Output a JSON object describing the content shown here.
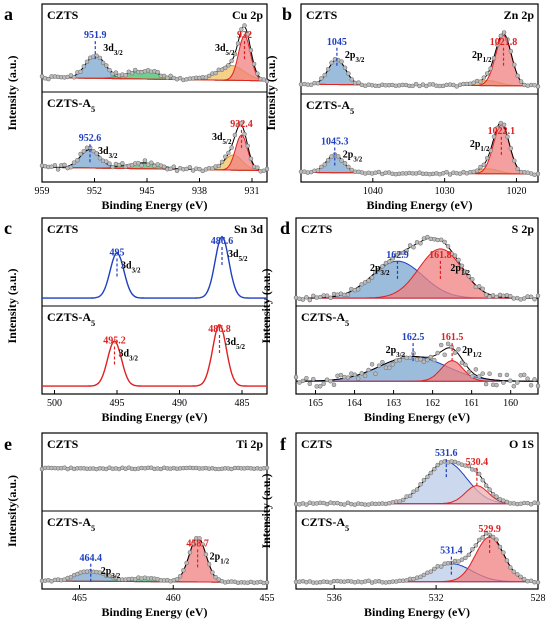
{
  "chart_data": [
    {
      "panel": "a",
      "type": "line",
      "element": "Cu 2p",
      "xlabel": "Binding Energy (eV)",
      "ylabel": "Intensity (a.u.)",
      "xlim": [
        959,
        929
      ],
      "xticks": [
        959,
        952,
        945,
        938,
        931
      ],
      "reversed_x": true,
      "subpanels": [
        {
          "sample": "CZTS",
          "peaks": [
            {
              "label": "951.9",
              "orbital": "3d",
              "sub": "3/2",
              "x": 951.9,
              "color": "#1f3fbf"
            },
            {
              "label": "932",
              "orbital": "3d",
              "sub": "5/2",
              "x": 932,
              "color": "#e02020"
            }
          ]
        },
        {
          "sample": "CZTS-A",
          "sample_sub": "5",
          "peaks": [
            {
              "label": "952.6",
              "orbital": "3d",
              "sub": "3/2",
              "x": 952.6,
              "color": "#1f3fbf"
            },
            {
              "label": "932.4",
              "orbital": "3d",
              "sub": "5/2",
              "x": 932.4,
              "color": "#e02020"
            }
          ]
        }
      ]
    },
    {
      "panel": "b",
      "type": "line",
      "element": "Zn 2p",
      "xlabel": "Binding Energy (eV)",
      "ylabel": "Intensity (a.u.)",
      "xlim": [
        1050,
        1017
      ],
      "xticks": [
        1040,
        1030,
        1020
      ],
      "reversed_x": true,
      "subpanels": [
        {
          "sample": "CZTS",
          "peaks": [
            {
              "label": "1045",
              "orbital": "2p",
              "sub": "3/2",
              "x": 1045,
              "color": "#1f3fbf"
            },
            {
              "label": "1021.8",
              "orbital": "2p",
              "sub": "1/2",
              "x": 1021.8,
              "color": "#e02020"
            }
          ]
        },
        {
          "sample": "CZTS-A",
          "sample_sub": "5",
          "peaks": [
            {
              "label": "1045.3",
              "orbital": "2p",
              "sub": "3/2",
              "x": 1045.3,
              "color": "#1f3fbf"
            },
            {
              "label": "1022.1",
              "orbital": "2p",
              "sub": "1/2",
              "x": 1022.1,
              "color": "#e02020"
            }
          ]
        }
      ]
    },
    {
      "panel": "c",
      "type": "line",
      "element": "Sn 3d",
      "xlabel": "Binding Energy (eV)",
      "ylabel": "Intensity (a.u.)",
      "xlim": [
        501,
        483
      ],
      "xticks": [
        500,
        495,
        490,
        485
      ],
      "reversed_x": true,
      "subpanels": [
        {
          "sample": "CZTS",
          "line_color": "#1f3fbf",
          "peaks": [
            {
              "label": "495",
              "orbital": "3d",
              "sub": "3/2",
              "x": 495,
              "color": "#1f3fbf"
            },
            {
              "label": "486.6",
              "orbital": "3d",
              "sub": "5/2",
              "x": 486.6,
              "color": "#1f3fbf"
            }
          ]
        },
        {
          "sample": "CZTS-A",
          "sample_sub": "5",
          "line_color": "#e02020",
          "peaks": [
            {
              "label": "495.2",
              "orbital": "3d",
              "sub": "3/2",
              "x": 495.2,
              "color": "#e02020"
            },
            {
              "label": "486.8",
              "orbital": "3d",
              "sub": "5/2",
              "x": 486.8,
              "color": "#e02020"
            }
          ]
        }
      ]
    },
    {
      "panel": "d",
      "type": "line",
      "element": "S 2p",
      "xlabel": "Binding Energy (eV)",
      "ylabel": "Intensity (a.u.)",
      "xlim": [
        165.5,
        159.3
      ],
      "xticks": [
        165,
        164,
        163,
        162,
        161,
        160
      ],
      "reversed_x": true,
      "subpanels": [
        {
          "sample": "CZTS",
          "peaks": [
            {
              "label": "162.9",
              "orbital": "2p",
              "sub": "3/2",
              "x": 162.9,
              "color": "#1f3fbf"
            },
            {
              "label": "161.8",
              "orbital": "2p",
              "sub": "1/2",
              "x": 161.8,
              "color": "#e02020"
            }
          ]
        },
        {
          "sample": "CZTS-A",
          "sample_sub": "5",
          "peaks": [
            {
              "label": "162.5",
              "orbital": "2p",
              "sub": "3/2",
              "x": 162.5,
              "color": "#1f3fbf"
            },
            {
              "label": "161.5",
              "orbital": "2p",
              "sub": "1/2",
              "x": 161.5,
              "color": "#e02020"
            }
          ]
        }
      ]
    },
    {
      "panel": "e",
      "type": "line",
      "element": "Ti 2p",
      "xlabel": "Binding Energy (eV)",
      "ylabel": "Intensity(a.u.)",
      "xlim": [
        467,
        455
      ],
      "xticks": [
        465,
        460,
        455
      ],
      "reversed_x": true,
      "subpanels": [
        {
          "sample": "CZTS",
          "peaks": []
        },
        {
          "sample": "CZTS-A",
          "sample_sub": "5",
          "peaks": [
            {
              "label": "464.4",
              "orbital": "2p",
              "sub": "3/2",
              "x": 464.4,
              "color": "#1f3fbf"
            },
            {
              "label": "458.7",
              "orbital": "2p",
              "sub": "1/2",
              "x": 458.7,
              "color": "#e02020"
            }
          ]
        }
      ]
    },
    {
      "panel": "f",
      "type": "line",
      "element": "O 1S",
      "xlabel": "Binding Energy (eV)",
      "ylabel": "Intensity (a.u.)",
      "xlim": [
        537.5,
        528
      ],
      "xticks": [
        536,
        532,
        528
      ],
      "reversed_x": true,
      "subpanels": [
        {
          "sample": "CZTS",
          "peaks": [
            {
              "label": "531.6",
              "x": 531.6,
              "color": "#1f3fbf"
            },
            {
              "label": "530.4",
              "x": 530.4,
              "color": "#e02020"
            }
          ]
        },
        {
          "sample": "CZTS-A",
          "sample_sub": "5",
          "peaks": [
            {
              "label": "531.4",
              "x": 531.4,
              "color": "#1f3fbf"
            },
            {
              "label": "529.9",
              "x": 529.9,
              "color": "#e02020"
            }
          ]
        }
      ]
    }
  ]
}
